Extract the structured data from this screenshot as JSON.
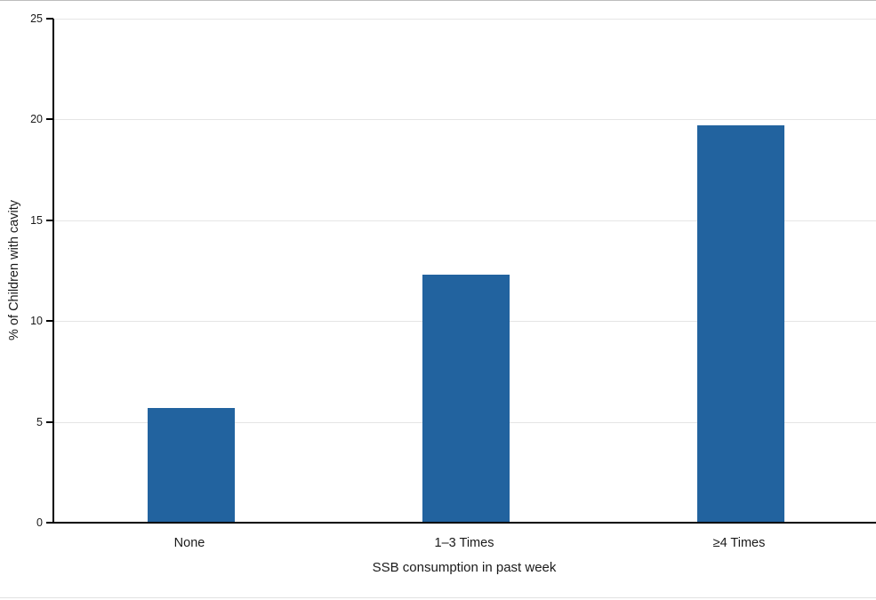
{
  "chart_data": {
    "type": "bar",
    "title": "",
    "categories": [
      "None",
      "1–3 Times",
      "≥4 Times"
    ],
    "values": [
      5.7,
      12.3,
      19.7
    ],
    "xlabel": "SSB consumption in past week",
    "ylabel": "% of Children with cavity",
    "ylim": [
      0,
      25
    ],
    "yticks": [
      0,
      5,
      10,
      15,
      20,
      25
    ],
    "grid": "horizontal-light-gray",
    "legend": "none",
    "bar_color": "#22639f",
    "gridline_color": "#e5e5e5",
    "axis_color": "#000000"
  }
}
